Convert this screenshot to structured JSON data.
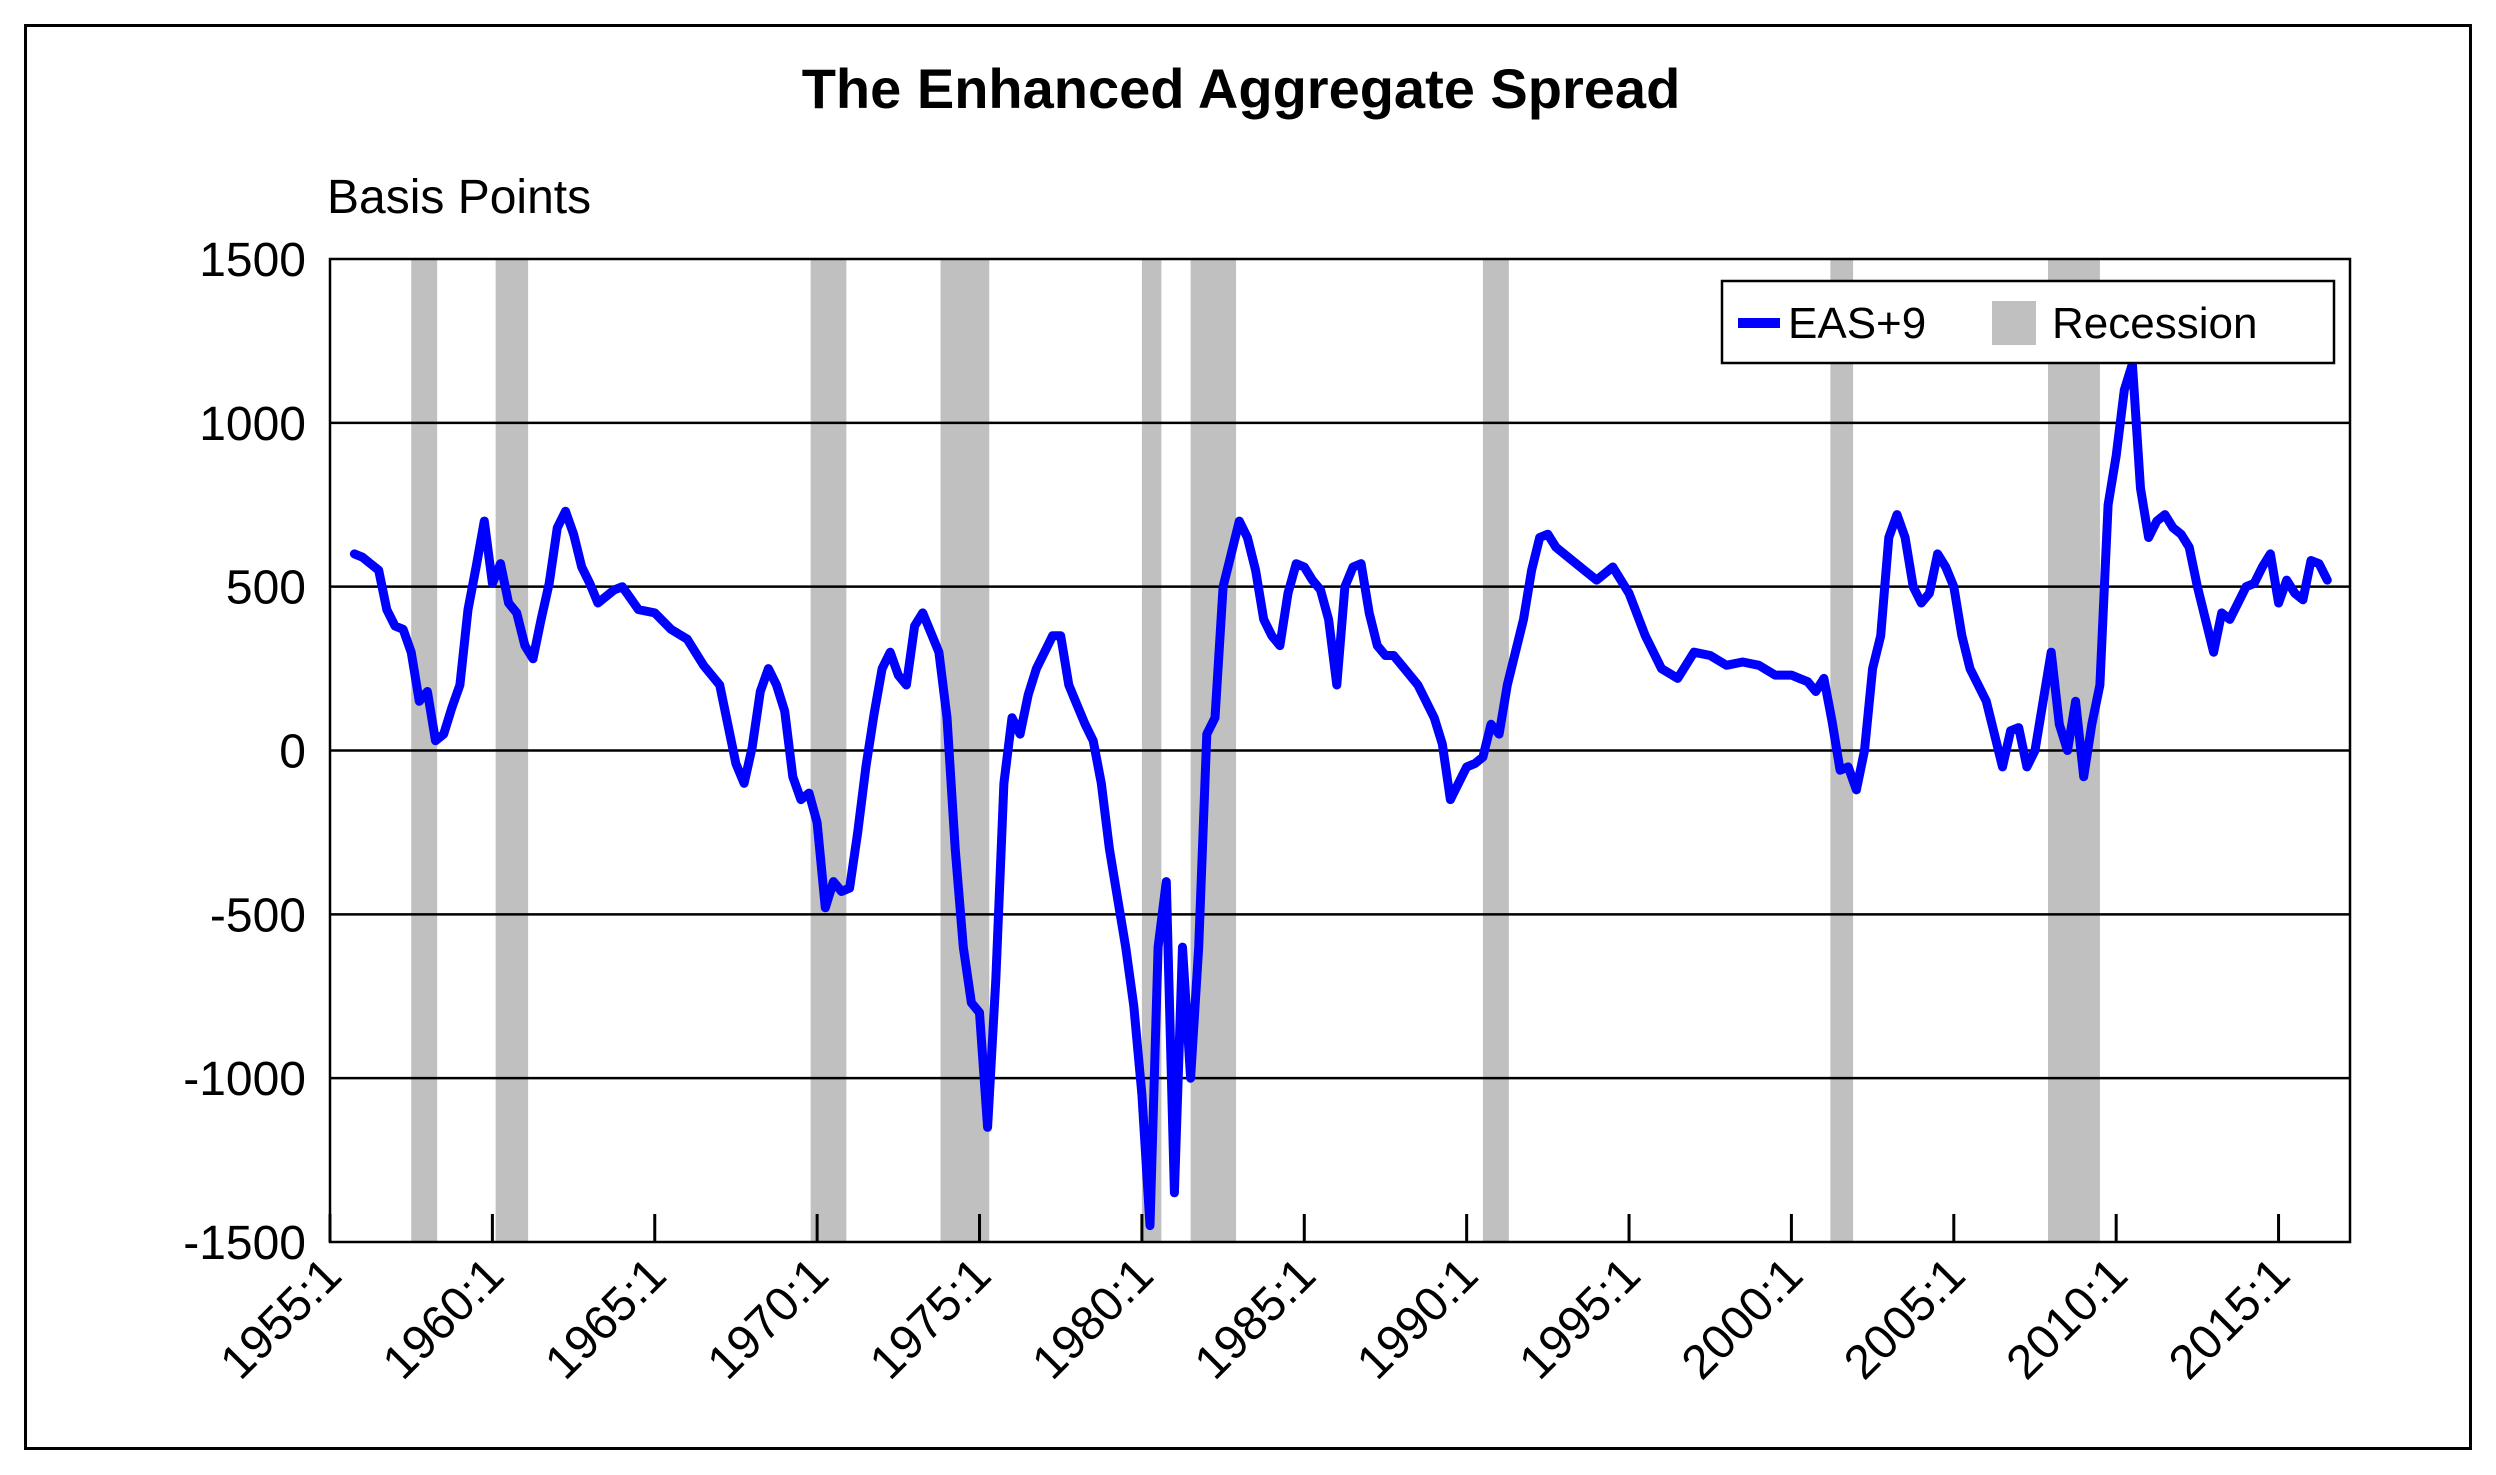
{
  "chart_data": {
    "type": "line",
    "title": "The Enhanced Aggregate Spread",
    "ylabel": "Basis Points",
    "xlabel": "",
    "ylim": [
      -1500,
      1500
    ],
    "xlim": [
      1955.0,
      2017.2
    ],
    "yticks": [
      1500,
      1000,
      500,
      0,
      -500,
      -1000,
      -1500
    ],
    "xticks": [
      {
        "value": 1955.0,
        "label": "1955:1"
      },
      {
        "value": 1960.0,
        "label": "1960:1"
      },
      {
        "value": 1965.0,
        "label": "1965:1"
      },
      {
        "value": 1970.0,
        "label": "1970:1"
      },
      {
        "value": 1975.0,
        "label": "1975:1"
      },
      {
        "value": 1980.0,
        "label": "1980:1"
      },
      {
        "value": 1985.0,
        "label": "1985:1"
      },
      {
        "value": 1990.0,
        "label": "1990:1"
      },
      {
        "value": 1995.0,
        "label": "1995:1"
      },
      {
        "value": 2000.0,
        "label": "2000:1"
      },
      {
        "value": 2005.0,
        "label": "2005:1"
      },
      {
        "value": 2010.0,
        "label": "2010:1"
      },
      {
        "value": 2015.0,
        "label": "2015:1"
      }
    ],
    "grid": true,
    "legend_position": "top-right",
    "legend": [
      {
        "label": "EAS+9",
        "kind": "line",
        "color": "#0000ff"
      },
      {
        "label": "Recession",
        "kind": "box",
        "color": "#c0c0c0"
      }
    ],
    "recessions": [
      [
        1957.5,
        1958.3
      ],
      [
        1960.1,
        1961.1
      ],
      [
        1969.8,
        1970.9
      ],
      [
        1973.8,
        1975.3
      ],
      [
        1980.0,
        1980.6
      ],
      [
        1981.5,
        1982.9
      ],
      [
        1990.5,
        1991.3
      ],
      [
        2001.2,
        2001.9
      ],
      [
        2007.9,
        2009.5
      ]
    ],
    "series": [
      {
        "name": "EAS+9",
        "color": "#0000ff",
        "x": [
          1955.75,
          1956.0,
          1956.25,
          1956.5,
          1956.75,
          1957.0,
          1957.25,
          1957.5,
          1957.75,
          1958.0,
          1958.25,
          1958.5,
          1958.75,
          1959.0,
          1959.25,
          1959.5,
          1959.75,
          1960.0,
          1960.25,
          1960.5,
          1960.75,
          1961.0,
          1961.25,
          1961.5,
          1961.75,
          1962.0,
          1962.25,
          1962.5,
          1962.75,
          1963.0,
          1963.25,
          1963.5,
          1963.75,
          1964.0,
          1964.5,
          1965.0,
          1965.5,
          1966.0,
          1966.5,
          1967.0,
          1967.25,
          1967.5,
          1967.75,
          1968.0,
          1968.25,
          1968.5,
          1968.75,
          1969.0,
          1969.25,
          1969.5,
          1969.75,
          1970.0,
          1970.25,
          1970.5,
          1970.75,
          1971.0,
          1971.25,
          1971.5,
          1971.75,
          1972.0,
          1972.25,
          1972.5,
          1972.75,
          1973.0,
          1973.25,
          1973.5,
          1973.75,
          1974.0,
          1974.25,
          1974.5,
          1974.75,
          1975.0,
          1975.25,
          1975.5,
          1975.75,
          1976.0,
          1976.25,
          1976.5,
          1976.75,
          1977.0,
          1977.25,
          1977.5,
          1977.75,
          1978.0,
          1978.25,
          1978.5,
          1978.75,
          1979.0,
          1979.25,
          1979.5,
          1979.75,
          1980.0,
          1980.25,
          1980.5,
          1980.75,
          1981.0,
          1981.25,
          1981.5,
          1981.75,
          1982.0,
          1982.25,
          1982.5,
          1982.75,
          1983.0,
          1983.25,
          1983.5,
          1983.75,
          1984.0,
          1984.25,
          1984.5,
          1984.75,
          1985.0,
          1985.25,
          1985.5,
          1985.75,
          1986.0,
          1986.25,
          1986.5,
          1986.75,
          1987.0,
          1987.25,
          1987.5,
          1987.75,
          1988.0,
          1988.5,
          1989.0,
          1989.25,
          1989.5,
          1989.75,
          1990.0,
          1990.25,
          1990.5,
          1990.75,
          1991.0,
          1991.25,
          1991.5,
          1991.75,
          1992.0,
          1992.25,
          1992.5,
          1992.75,
          1993.0,
          1993.5,
          1994.0,
          1994.5,
          1995.0,
          1995.5,
          1996.0,
          1996.5,
          1997.0,
          1997.5,
          1998.0,
          1998.5,
          1999.0,
          1999.5,
          2000.0,
          2000.25,
          2000.5,
          2000.75,
          2001.0,
          2001.25,
          2001.5,
          2001.75,
          2002.0,
          2002.25,
          2002.5,
          2002.75,
          2003.0,
          2003.25,
          2003.5,
          2003.75,
          2004.0,
          2004.25,
          2004.5,
          2004.75,
          2005.0,
          2005.25,
          2005.5,
          2005.75,
          2006.0,
          2006.25,
          2006.5,
          2006.75,
          2007.0,
          2007.25,
          2007.5,
          2007.75,
          2008.0,
          2008.25,
          2008.5,
          2008.75,
          2009.0,
          2009.25,
          2009.5,
          2009.75,
          2010.0,
          2010.25,
          2010.5,
          2010.75,
          2011.0,
          2011.25,
          2011.5,
          2011.75,
          2012.0,
          2012.25,
          2012.5,
          2012.75,
          2013.0,
          2013.25,
          2013.5,
          2013.75,
          2014.0,
          2014.25,
          2014.5,
          2014.75,
          2015.0,
          2015.25,
          2015.5,
          2015.75,
          2016.0,
          2016.25,
          2016.5
        ],
        "values": [
          600,
          590,
          570,
          550,
          430,
          380,
          370,
          300,
          150,
          180,
          30,
          50,
          130,
          200,
          430,
          560,
          700,
          510,
          570,
          450,
          420,
          320,
          280,
          400,
          510,
          680,
          730,
          660,
          560,
          510,
          450,
          470,
          490,
          500,
          430,
          420,
          370,
          340,
          260,
          200,
          80,
          -40,
          -100,
          10,
          180,
          250,
          200,
          120,
          -80,
          -150,
          -130,
          -220,
          -480,
          -400,
          -430,
          -420,
          -250,
          -50,
          110,
          250,
          300,
          230,
          200,
          380,
          420,
          360,
          300,
          100,
          -300,
          -600,
          -770,
          -800,
          -1150,
          -700,
          -100,
          100,
          50,
          170,
          250,
          300,
          350,
          350,
          200,
          140,
          80,
          30,
          -100,
          -300,
          -450,
          -600,
          -780,
          -1050,
          -1450,
          -600,
          -400,
          -1350,
          -600,
          -1000,
          -600,
          50,
          100,
          500,
          600,
          700,
          650,
          550,
          400,
          350,
          320,
          480,
          570,
          560,
          520,
          490,
          400,
          200,
          500,
          560,
          570,
          420,
          320,
          290,
          290,
          260,
          200,
          100,
          20,
          -150,
          -100,
          -50,
          -40,
          -20,
          80,
          50,
          200,
          300,
          400,
          550,
          650,
          660,
          620,
          600,
          560,
          520,
          560,
          480,
          350,
          250,
          220,
          300,
          290,
          260,
          270,
          260,
          230,
          230,
          220,
          210,
          180,
          220,
          90,
          -60,
          -50,
          -120,
          0,
          250,
          350,
          650,
          720,
          650,
          500,
          450,
          480,
          600,
          560,
          500,
          350,
          250,
          200,
          150,
          50,
          -50,
          60,
          70,
          -50,
          0,
          150,
          300,
          80,
          0,
          150,
          -80,
          80,
          200,
          750,
          900,
          1100,
          1180,
          800,
          650,
          700,
          720,
          680,
          660,
          620,
          500,
          400,
          300,
          420,
          400,
          450,
          500,
          510,
          560,
          600,
          450,
          520,
          480,
          460,
          580,
          570,
          520
        ]
      }
    ]
  }
}
